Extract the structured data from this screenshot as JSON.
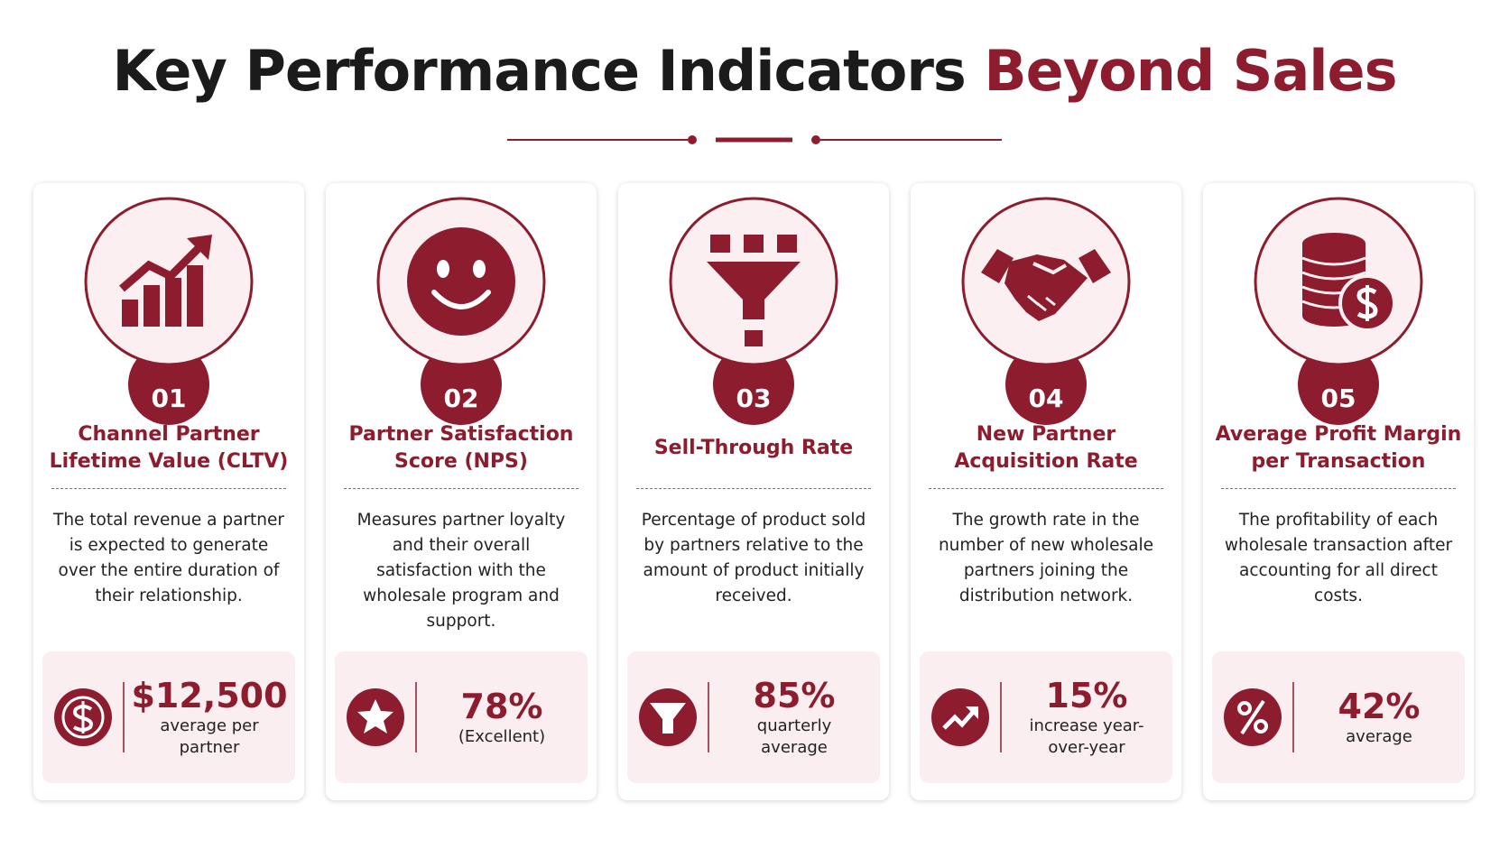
{
  "header": {
    "title_main": "Key Performance Indicators",
    "title_accent": "Beyond Sales"
  },
  "cards": [
    {
      "number": "01",
      "title": "Channel Partner Lifetime Value (CLTV)",
      "description": "The total revenue a partner is expected to generate over the entire duration of their relationship.",
      "metric_value": "$12,500",
      "metric_caption": "average per partner"
    },
    {
      "number": "02",
      "title": "Partner Satisfaction Score (NPS)",
      "description": "Measures partner loyalty and their overall satisfaction with the wholesale program and support.",
      "metric_value": "78%",
      "metric_caption": "(Excellent)"
    },
    {
      "number": "03",
      "title": "Sell-Through Rate",
      "description": "Percentage of product sold by partners relative to the amount of product initially received.",
      "metric_value": "85%",
      "metric_caption": "quarterly average"
    },
    {
      "number": "04",
      "title": "New Partner Acquisition Rate",
      "description": "The growth rate in the number of new wholesale partners joining the distribution network.",
      "metric_value": "15%",
      "metric_caption": "increase year-over-year"
    },
    {
      "number": "05",
      "title": "Average Profit Margin per Transaction",
      "description": "The profitability of each wholesale transaction after accounting for all direct costs.",
      "metric_value": "42%",
      "metric_caption": "average"
    }
  ]
}
